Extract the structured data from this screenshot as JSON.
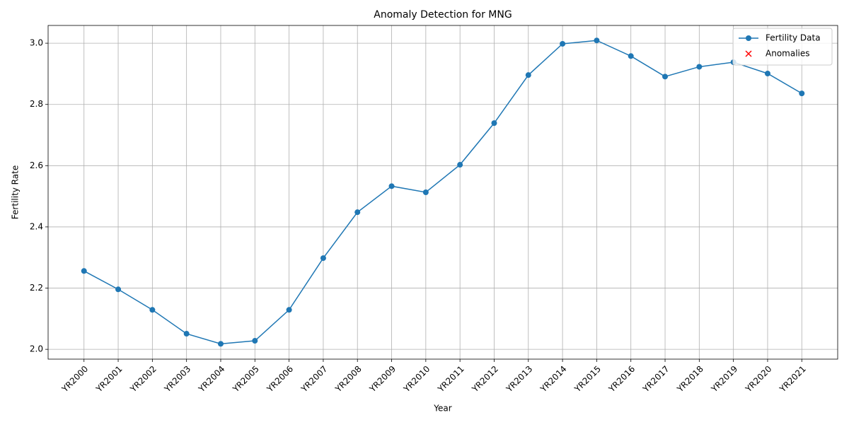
{
  "chart_data": {
    "type": "line",
    "title": "Anomaly Detection for MNG",
    "xlabel": "Year",
    "ylabel": "Fertility Rate",
    "categories": [
      "YR2000",
      "YR2001",
      "YR2002",
      "YR2003",
      "YR2004",
      "YR2005",
      "YR2006",
      "YR2007",
      "YR2008",
      "YR2009",
      "YR2010",
      "YR2011",
      "YR2012",
      "YR2013",
      "YR2014",
      "YR2015",
      "YR2016",
      "YR2017",
      "YR2018",
      "YR2019",
      "YR2020",
      "YR2021"
    ],
    "series": [
      {
        "name": "Fertility Data",
        "color": "#1f77b4",
        "marker": "o",
        "values": [
          2.256,
          2.196,
          2.129,
          2.051,
          2.018,
          2.028,
          2.129,
          2.298,
          2.448,
          2.533,
          2.513,
          2.603,
          2.739,
          2.896,
          2.998,
          3.009,
          2.958,
          2.891,
          2.923,
          2.938,
          2.901,
          2.836
        ]
      },
      {
        "name": "Anomalies",
        "color": "#ff0000",
        "marker": "x",
        "values": [
          null,
          null,
          null,
          null,
          null,
          null,
          null,
          null,
          null,
          null,
          null,
          null,
          null,
          null,
          null,
          null,
          null,
          null,
          null,
          null,
          null,
          null
        ]
      }
    ],
    "ylim": [
      1.968,
      3.058
    ],
    "yticks": [
      {
        "value": 2.0,
        "label": "2.0"
      },
      2.2,
      2.4,
      2.6,
      2.8,
      {
        "value": 3.0,
        "label": "3.0"
      }
    ],
    "grid": true,
    "legend": "upper right"
  }
}
